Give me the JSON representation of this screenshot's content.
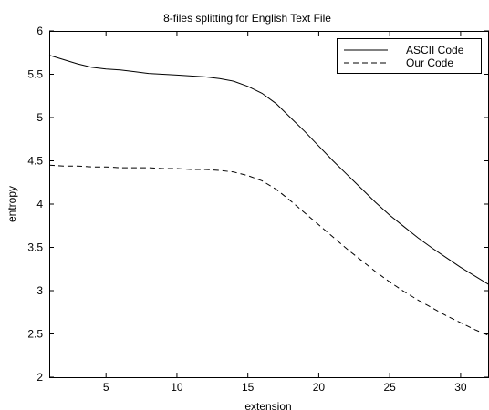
{
  "chart_data": {
    "type": "line",
    "title": "8-files splitting for English Text File",
    "xlabel": "extension",
    "ylabel": "entropy",
    "xlim": [
      1,
      32
    ],
    "ylim": [
      2,
      6
    ],
    "xticks": [
      5,
      10,
      15,
      20,
      25,
      30
    ],
    "yticks": [
      2,
      2.5,
      3,
      3.5,
      4,
      4.5,
      5,
      5.5,
      6
    ],
    "grid": false,
    "legend_position": "top-right",
    "series": [
      {
        "name": "ASCII Code",
        "line_style": "solid",
        "color": "#000000",
        "x": [
          1,
          2,
          3,
          4,
          5,
          6,
          7,
          8,
          9,
          10,
          11,
          12,
          13,
          14,
          15,
          16,
          17,
          18,
          19,
          20,
          21,
          22,
          23,
          24,
          25,
          26,
          27,
          28,
          29,
          30,
          31,
          32
        ],
        "y": [
          5.72,
          5.67,
          5.62,
          5.58,
          5.56,
          5.55,
          5.53,
          5.51,
          5.5,
          5.49,
          5.48,
          5.47,
          5.45,
          5.42,
          5.36,
          5.28,
          5.16,
          5.0,
          4.84,
          4.67,
          4.5,
          4.34,
          4.18,
          4.02,
          3.87,
          3.74,
          3.61,
          3.49,
          3.38,
          3.27,
          3.17,
          3.07
        ]
      },
      {
        "name": "Our Code",
        "line_style": "dashed",
        "color": "#000000",
        "x": [
          1,
          2,
          3,
          4,
          5,
          6,
          7,
          8,
          9,
          10,
          11,
          12,
          13,
          14,
          15,
          16,
          17,
          18,
          19,
          20,
          21,
          22,
          23,
          24,
          25,
          26,
          27,
          28,
          29,
          30,
          31,
          32
        ],
        "y": [
          4.45,
          4.44,
          4.44,
          4.43,
          4.43,
          4.42,
          4.42,
          4.42,
          4.41,
          4.41,
          4.4,
          4.4,
          4.39,
          4.37,
          4.33,
          4.27,
          4.17,
          4.04,
          3.9,
          3.76,
          3.62,
          3.48,
          3.35,
          3.22,
          3.1,
          2.99,
          2.89,
          2.8,
          2.71,
          2.63,
          2.55,
          2.48
        ]
      }
    ]
  }
}
